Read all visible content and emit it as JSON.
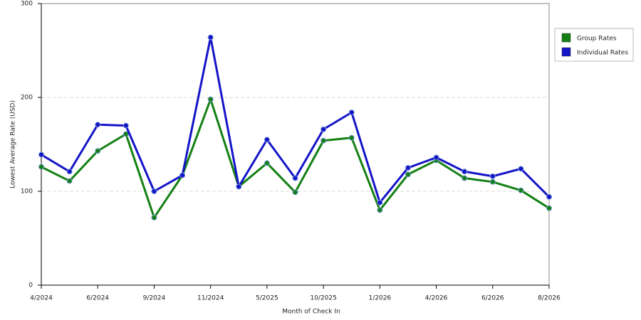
{
  "chart_data": {
    "type": "line",
    "x_label": "Month of Check In",
    "y_label": "Lowest Average Rate (USD)",
    "categories": [
      "4/2024",
      null,
      "6/2024",
      null,
      "9/2024",
      null,
      "11/2024",
      null,
      "5/2025",
      null,
      "10/2025",
      null,
      "1/2026",
      null,
      "4/2026",
      null,
      "6/2026",
      null,
      "8/2026"
    ],
    "series": [
      {
        "name": "Group Rates",
        "color": "#138013",
        "values": [
          126,
          111,
          143,
          161,
          72,
          117,
          198,
          105,
          130,
          99,
          154,
          157,
          80,
          118,
          133,
          114,
          110,
          101,
          82
        ]
      },
      {
        "name": "Individual Rates",
        "color": "#1414c8",
        "values": [
          139,
          121,
          171,
          170,
          100,
          117,
          264,
          105,
          155,
          114,
          166,
          184,
          88,
          125,
          136,
          121,
          116,
          124,
          94
        ]
      }
    ],
    "ylim": [
      0,
      300
    ],
    "yticks": [
      0,
      100,
      200,
      300
    ],
    "grid": true,
    "legend": "right"
  }
}
